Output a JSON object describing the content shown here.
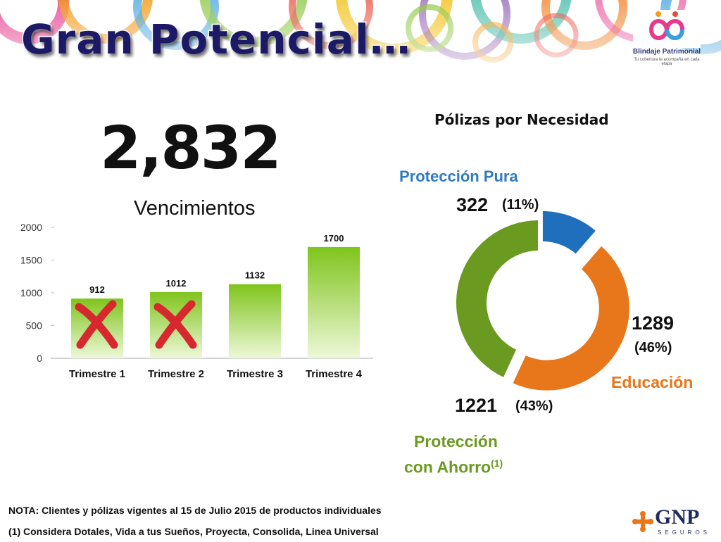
{
  "slide": {
    "title": "Gran Potencial…",
    "total": "2,832",
    "chart_title": "Vencimientos",
    "pie_title": "Pólizas por Necesidad",
    "logo": {
      "name": "Blindaje Patrimonial",
      "tagline": "Tu cobertura te acompaña en cada etapa"
    },
    "brand": {
      "name": "GNP",
      "sub": "SEGUROS"
    },
    "notes": [
      "NOTA: Clientes y pólizas vigentes al 15 de Julio 2015 de productos individuales",
      "(1) Considera Dotales, Vida a tus Sueños, Proyecta, Consolida, Linea Universal"
    ],
    "pie_labels": {
      "pura": {
        "name": "Protección Pura",
        "value": "322",
        "pct": "(11%)"
      },
      "educacion": {
        "name": "Educación",
        "value": "1289",
        "pct": "(46%)"
      },
      "ahorro": {
        "name_line1": "Protección",
        "name_line2": "con Ahorro",
        "sup": "(1)",
        "value": "1221",
        "pct": "(43%)"
      }
    },
    "colors": {
      "title": "#1c1a66",
      "orange": "#e8761a",
      "green": "#6a9a1f",
      "blue": "#1f6fbd",
      "bar": "#8fcf2a",
      "cross": "#d6282e",
      "label_blue": "#2f7ac2"
    },
    "icons": [
      "cross-mark-icon",
      "blindaje-logo-icon",
      "gnp-logo-icon"
    ]
  },
  "chart_data": [
    {
      "type": "bar",
      "categories": [
        "Trimestre 1",
        "Trimestre 2",
        "Trimestre 3",
        "Trimestre 4"
      ],
      "values": [
        912,
        1012,
        1132,
        1700
      ],
      "title": "Vencimientos",
      "ylim": [
        0,
        2000
      ],
      "yticks": [
        0,
        500,
        1000,
        1500,
        2000
      ],
      "crossed_out": [
        "Trimestre 1",
        "Trimestre 2"
      ]
    },
    {
      "type": "pie",
      "title": "Pólizas por Necesidad",
      "categories": [
        "Protección Pura",
        "Educación",
        "Protección con Ahorro"
      ],
      "values": [
        322,
        1289,
        1221
      ],
      "percent": [
        11,
        46,
        43
      ]
    }
  ]
}
